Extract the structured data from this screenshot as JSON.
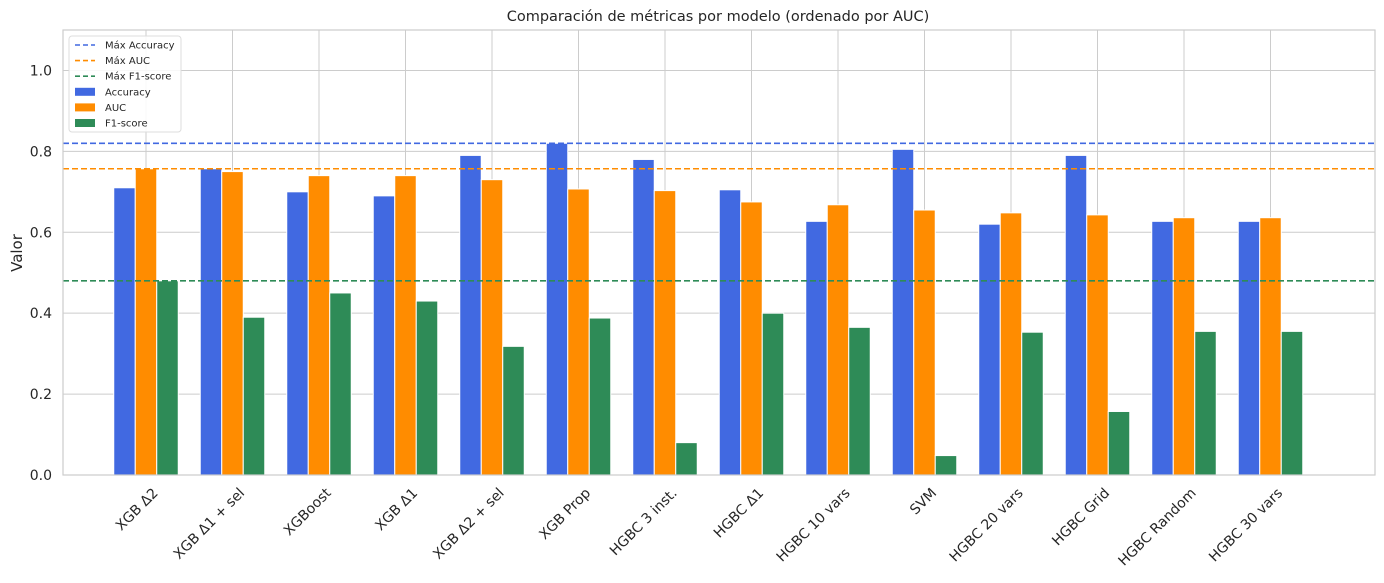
{
  "chart_data": {
    "type": "bar",
    "title": "Comparación de métricas por modelo (ordenado por AUC)",
    "xlabel": "",
    "ylabel": "Valor",
    "ylim": [
      0,
      1.1
    ],
    "yticks": [
      "0.0",
      "0.2",
      "0.4",
      "0.6",
      "0.8",
      "1.0"
    ],
    "grid": true,
    "legend_position": "top-left",
    "categories": [
      "XGB Δ2",
      "XGB Δ1 + sel",
      "XGBoost",
      "XGB Δ1",
      "XGB Δ2 + sel",
      "XGB Prop",
      "HGBC 3 inst.",
      "HGBC Δ1",
      "HGBC 10 vars",
      "SVM",
      "HGBC 20 vars",
      "HGBC Grid",
      "HGBC Random",
      "HGBC 30 vars"
    ],
    "series": [
      {
        "name": "Accuracy",
        "color": "#4169E1",
        "values": [
          0.71,
          0.757,
          0.7,
          0.69,
          0.79,
          0.82,
          0.78,
          0.705,
          0.627,
          0.805,
          0.62,
          0.79,
          0.627,
          0.627
        ]
      },
      {
        "name": "AUC",
        "color": "#FF8C00",
        "values": [
          0.757,
          0.75,
          0.74,
          0.74,
          0.73,
          0.707,
          0.703,
          0.675,
          0.668,
          0.655,
          0.648,
          0.643,
          0.636,
          0.636
        ]
      },
      {
        "name": "F1-score",
        "color": "#2E8B57",
        "values": [
          0.48,
          0.39,
          0.45,
          0.43,
          0.318,
          0.388,
          0.08,
          0.4,
          0.365,
          0.048,
          0.353,
          0.157,
          0.355,
          0.355
        ]
      }
    ],
    "reference_lines": [
      {
        "name": "Máx Accuracy",
        "value": 0.82,
        "color": "#4169E1"
      },
      {
        "name": "Máx AUC",
        "value": 0.757,
        "color": "#FF8C00"
      },
      {
        "name": "Máx F1-score",
        "value": 0.48,
        "color": "#2E8B57"
      }
    ]
  }
}
